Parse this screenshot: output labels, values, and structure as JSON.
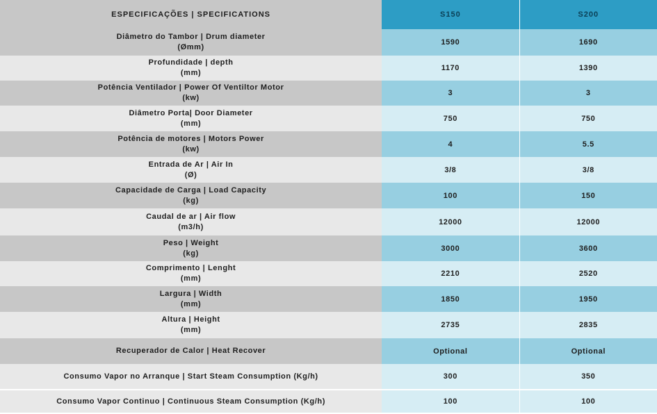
{
  "header": {
    "label": "ESPECIFICAÇÕES | SPECIFICATIONS",
    "col1": "S150",
    "col2": "S200"
  },
  "rows": [
    {
      "label1": "Diâmetro do Tambor | Drum diameter",
      "label2": "(Ømm)",
      "v1": "1590",
      "v2": "1690"
    },
    {
      "label1": "Profundidade | depth",
      "label2": "(mm)",
      "v1": "1170",
      "v2": "1390"
    },
    {
      "label1": "Potência Ventilador | Power Of Ventiltor Motor",
      "label2": "(kw)",
      "v1": "3",
      "v2": "3"
    },
    {
      "label1": "Diâmetro Porta| Door Diameter",
      "label2": "(mm)",
      "v1": "750",
      "v2": "750"
    },
    {
      "label1": "Potência de motores | Motors Power",
      "label2": "(kw)",
      "v1": "4",
      "v2": "5.5"
    },
    {
      "label1": "Entrada de Ar | Air In",
      "label2": "(Ø)",
      "v1": "3/8",
      "v2": "3/8"
    },
    {
      "label1": "Capacidade de Carga | Load Capacity",
      "label2": "(kg)",
      "v1": "100",
      "v2": "150"
    },
    {
      "label1": "Caudal de ar | Air flow",
      "label2": "(m3/h)",
      "v1": "12000",
      "v2": "12000"
    },
    {
      "label1": "Peso | Weight",
      "label2": "(kg)",
      "v1": "3000",
      "v2": "3600"
    },
    {
      "label1": "Comprimento | Lenght",
      "label2": "(mm)",
      "v1": "2210",
      "v2": "2520"
    },
    {
      "label1": "Largura | Width",
      "label2": "(mm)",
      "v1": "1850",
      "v2": "1950"
    },
    {
      "label1": "Altura | Height",
      "label2": "(mm)",
      "v1": "2735",
      "v2": "2835"
    },
    {
      "label1": "Recuperador de Calor | Heat Recover",
      "label2": "",
      "v1": "Optional",
      "v2": "Optional"
    },
    {
      "label1": "Consumo Vapor no Arranque | Start Steam Consumption (Kg/h)",
      "label2": "",
      "v1": "300",
      "v2": "350"
    },
    {
      "label1": "Consumo Vapor Continuo | Continuous Steam Consumption (Kg/h)",
      "label2": "",
      "v1": "100",
      "v2": "100"
    }
  ]
}
